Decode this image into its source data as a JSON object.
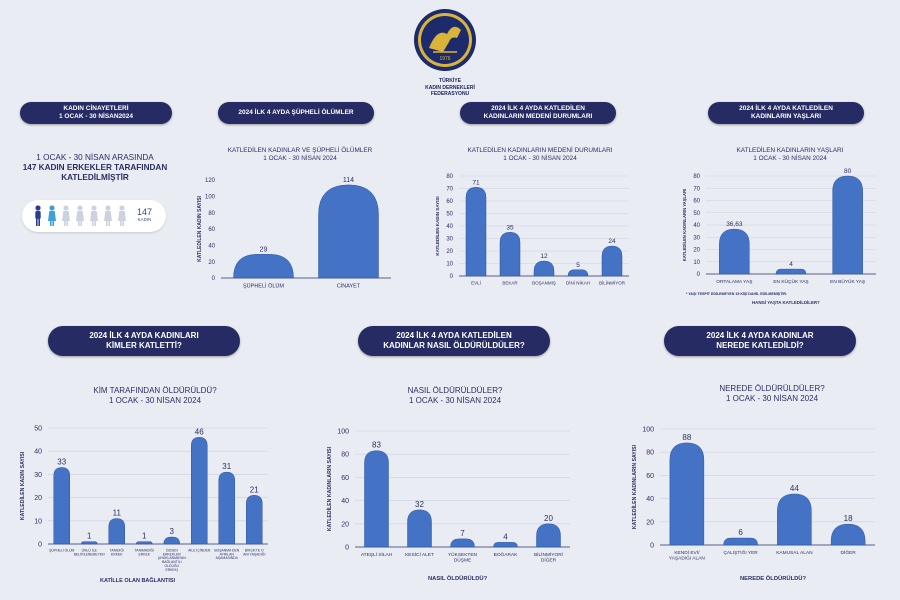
{
  "header": {
    "logo_year": "1976",
    "org_lines": [
      "TÜRKİYE",
      "KADIN DERNEKLERİ",
      "FEDERASYONU"
    ]
  },
  "summary": {
    "pill_lines": [
      "KADIN CİNAYETLERİ",
      "1 OCAK - 30 NİSAN2024"
    ],
    "stat_line1": "1 OCAK - 30 NİSAN ARASINDA",
    "stat_line2": "147 KADIN ERKEKLER TARAFINDAN",
    "stat_line3": "KATLEDİLMİŞTİR",
    "count": "147",
    "count_unit": "KADIN"
  },
  "panels": {
    "suspicious": {
      "pill_lines": [
        "2024 İLK 4 AYDA ŞÜPHELİ ÖLÜMLER"
      ],
      "title_lines": [
        "KATLEDİLEN KADINLAR VE ŞÜPHELİ ÖLÜMLER",
        "1 OCAK - 30 NİSAN 2024"
      ]
    },
    "marital": {
      "pill_lines": [
        "2024 İLK 4 AYDA KATLEDİLEN",
        "KADINLARIN MEDENİ DURUMLARI"
      ],
      "title_lines": [
        "KATLEDİLEN KADINLARIN MEDENİ DURUMLARI",
        "1 OCAK - 30 NİSAN 2024"
      ]
    },
    "ages": {
      "pill_lines": [
        "2024 İLK 4 AYDA  KATLEDİLEN",
        "KADINLARIN YAŞLARI"
      ],
      "title_lines": [
        "KATLEDİLEN KADINLARIN YAŞLARI",
        "1 OCAK - 30 NİSAN 2024"
      ],
      "note": "* YAŞI TESPİT EDİLEMEYEN 15 KİŞİ DAHİL EDİLMEMİŞTİR.",
      "question": "HANGİ YAŞTA KATLEDİLDİLER?"
    },
    "who": {
      "pill_lines": [
        "2024 İLK 4 AYDA KADINLARI",
        "KİMLER KATLETTİ?"
      ],
      "title_lines": [
        "KİM TARAFINDAN ÖLDÜRÜLDÜ?",
        "1 OCAK - 30 NİSAN 2024"
      ],
      "xaxis": "KATİLLE OLAN BAĞLANTISI"
    },
    "how": {
      "pill_lines": [
        "2024 İLK 4 AYDA KATLEDİLEN",
        "KADINLAR NASIL ÖLDÜRÜLDÜLER?"
      ],
      "title_lines": [
        "NASIL ÖLDÜRÜLDÜLER?",
        "1 OCAK - 30 NİSAN 2024"
      ],
      "xaxis": "NASIL ÖLDÜRÜLDÜ?"
    },
    "where": {
      "pill_lines": [
        "2024 İLK 4 AYDA KADINLAR",
        "NEREDE KATLEDİLDİ?"
      ],
      "title_lines": [
        "NEREDE ÖLDÜRÜLDÜLER?",
        "1 OCAK - 30 NİSAN 2024"
      ],
      "xaxis": "NEREDE ÖLDÜRÜLDÜ?"
    }
  },
  "colors": {
    "bar": "#4472c4",
    "bar_dark": "#2f559e",
    "pill": "#262b63",
    "text": "#2b2f66",
    "grid": "#c9cfe0"
  },
  "chart_data": [
    {
      "id": "suspicious",
      "type": "bar",
      "title": "KATLEDİLEN KADINLAR VE ŞÜPHELİ ÖLÜMLER 1 OCAK - 30 NİSAN 2024",
      "ylabel": "KATLEDİLEN KADIN SAYISI",
      "categories": [
        "ŞÜPHELİ ÖLÜM",
        "CİNAYET"
      ],
      "values": [
        29,
        114
      ],
      "value_labels": [
        "29",
        "114"
      ],
      "ylim": [
        0,
        120
      ],
      "yticks": [
        0,
        20,
        40,
        60,
        80,
        100,
        120
      ],
      "grid": false
    },
    {
      "id": "marital",
      "type": "bar",
      "title": "KATLEDİLEN KADINLARIN MEDENİ DURUMLARI 1 OCAK - 30 NİSAN 2024",
      "ylabel": "KATLEDİLEN KADIN SAYISI",
      "categories": [
        "EVLİ",
        "BEKAR",
        "BOŞANMIŞ",
        "DİNİ NİKAH",
        "BİLİNMİYOR"
      ],
      "values": [
        71,
        35,
        12,
        5,
        24
      ],
      "value_labels": [
        "71",
        "35",
        "12",
        "5",
        "24"
      ],
      "ylim": [
        0,
        80
      ],
      "yticks": [
        0,
        10,
        20,
        30,
        40,
        50,
        60,
        70,
        80
      ],
      "grid": true
    },
    {
      "id": "ages",
      "type": "bar",
      "title": "KATLEDİLEN KADINLARIN YAŞLARI 1 OCAK - 30 NİSAN 2024",
      "ylabel": "KATLEDİLEN KADINLARIN YAŞLARI",
      "categories": [
        "ORTALAMA YAŞ",
        "EN KÜÇÜK YAŞ",
        "EN BÜYÜK YAŞ"
      ],
      "values": [
        36.63,
        4,
        80
      ],
      "value_labels": [
        "36,63",
        "4",
        "80"
      ],
      "ylim": [
        0,
        80
      ],
      "yticks": [
        0,
        10,
        20,
        30,
        40,
        50,
        60,
        70,
        80
      ],
      "grid": true
    },
    {
      "id": "who",
      "type": "bar",
      "title": "KİM TARAFINDAN ÖLDÜRÜLDÜ? 1 OCAK - 30 NİSAN 2024",
      "ylabel": "KATLEDİLEN KADIN SAYISI",
      "xlabel": "KATİLLE OLAN BAĞLANTISI",
      "categories": [
        "ŞÜPHELİ ÖLÜM",
        "ÜNLÜ İLE BELİRLENEMEYEN",
        "TANIDIĞI ERKEK",
        "TANIMADIĞI ERKEK",
        "ÖZDEN ERKEKLER (AYAKLANMAYAN BAĞLANTILI OLDUĞU ERKEK)",
        "AİLE İÇİNDEN",
        "BOŞANMA DEN AYRILAN AŞAMASINDA",
        "BİRLİKTE O ANI YAŞADIĞI"
      ],
      "values": [
        33,
        1,
        11,
        1,
        3,
        46,
        31,
        21
      ],
      "value_labels": [
        "33",
        "1",
        "11",
        "1",
        "3",
        "46",
        "31",
        "21"
      ],
      "ylim": [
        0,
        50
      ],
      "yticks": [
        0,
        10,
        20,
        30,
        40,
        50
      ],
      "grid": true
    },
    {
      "id": "how",
      "type": "bar",
      "title": "NASIL ÖLDÜRÜLDÜLER? 1 OCAK - 30 NİSAN 2024",
      "ylabel": "KATLEDİLEN KADINLARIN SAYISI",
      "xlabel": "NASIL ÖLDÜRÜLDÜ?",
      "categories": [
        "ATEŞLİ SİLAH",
        "KESİCİ ALET",
        "YÜKSEKTEN DÜŞME",
        "BOĞARAK",
        "BİLİNMİYOR/ DİĞER"
      ],
      "values": [
        83,
        32,
        7,
        4,
        20
      ],
      "value_labels": [
        "83",
        "32",
        "7",
        "4",
        "20"
      ],
      "ylim": [
        0,
        100
      ],
      "yticks": [
        0,
        20,
        40,
        60,
        80,
        100
      ],
      "grid": true
    },
    {
      "id": "where",
      "type": "bar",
      "title": "NEREDE ÖLDÜRÜLDÜLER? 1 OCAK - 30 NİSAN 2024",
      "ylabel": "KATLEDİLEN KADINLARIN SAYISI",
      "xlabel": "NEREDE ÖLDÜRÜLDÜ?",
      "categories": [
        "KENDİ EVİ/ YAŞADIĞI ALAN",
        "ÇALIŞTIĞI YER",
        "KAMUSAL ALAN",
        "DİĞER"
      ],
      "values": [
        88,
        6,
        44,
        18
      ],
      "value_labels": [
        "88",
        "6",
        "44",
        "18"
      ],
      "ylim": [
        0,
        100
      ],
      "yticks": [
        0,
        20,
        40,
        60,
        80,
        100
      ],
      "grid": true
    }
  ]
}
